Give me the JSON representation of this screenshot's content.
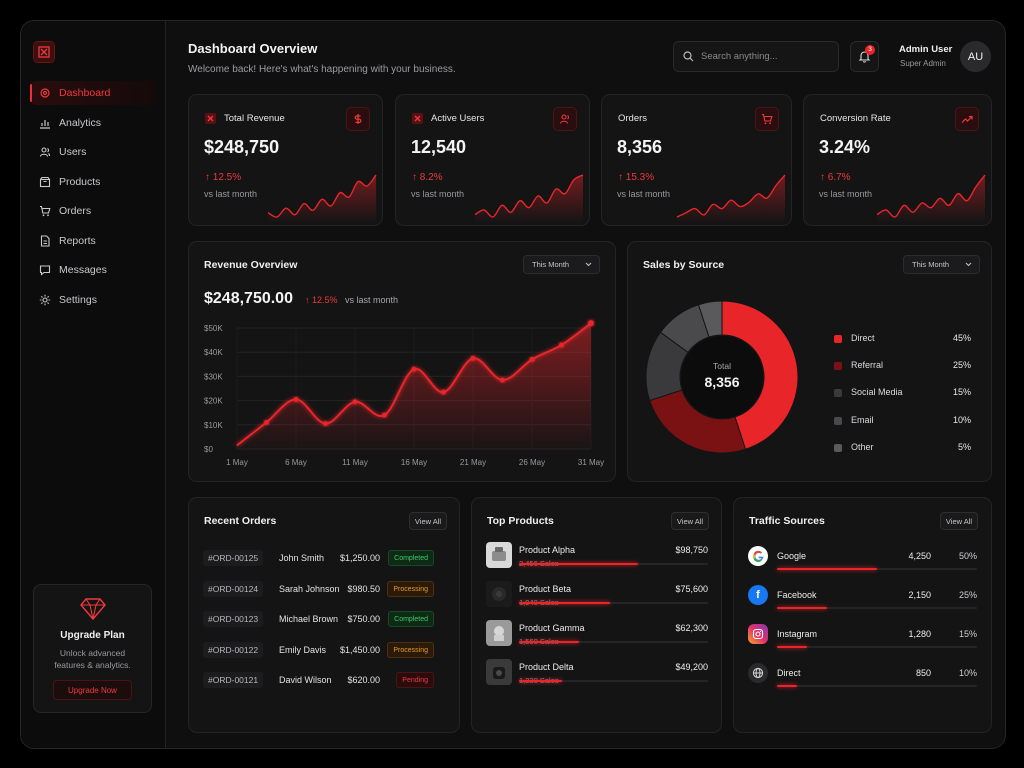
{
  "colors": {
    "accent": "#e8262a",
    "accent_dark": "#7a1214",
    "background": "#0f0f10",
    "card": "#141415",
    "gray": "#3a3a3c"
  },
  "sidebar": {
    "logo_icon": "logo-icon",
    "items": [
      {
        "label": "Dashboard",
        "icon": "gear-icon",
        "active": true
      },
      {
        "label": "Analytics",
        "icon": "bar-chart-icon"
      },
      {
        "label": "Users",
        "icon": "users-icon"
      },
      {
        "label": "Products",
        "icon": "box-icon"
      },
      {
        "label": "Orders",
        "icon": "cart-icon"
      },
      {
        "label": "Reports",
        "icon": "document-icon"
      },
      {
        "label": "Messages",
        "icon": "message-icon"
      },
      {
        "label": "Settings",
        "icon": "settings-icon"
      }
    ],
    "upgrade": {
      "title": "Upgrade Plan",
      "subtitle_line1": "Unlock advanced",
      "subtitle_line2": "features & analytics.",
      "button": "Upgrade Now"
    }
  },
  "header": {
    "title": "Dashboard Overview",
    "subtitle": "Welcome back! Here's what's happening with your business.",
    "search_placeholder": "Search anything...",
    "notification_count": "3",
    "user_name": "Admin User",
    "user_role": "Super Admin",
    "avatar_initials": "AU"
  },
  "stats": [
    {
      "label": "Total Revenue",
      "value": "$248,750",
      "change": "12.5%",
      "vs": "vs last month",
      "icon": "dollar-icon",
      "spark": [
        10,
        8,
        12,
        9,
        14,
        11,
        16,
        13,
        19,
        17,
        24,
        22,
        27
      ]
    },
    {
      "label": "Active Users",
      "value": "12,540",
      "change": "8.2%",
      "vs": "vs last month",
      "icon": "users-icon",
      "spark": [
        9,
        11,
        8,
        13,
        10,
        15,
        12,
        17,
        14,
        20,
        18,
        24,
        26
      ]
    },
    {
      "label": "Orders",
      "value": "8,356",
      "change": "15.3%",
      "vs": "vs last month",
      "icon": "cart-icon",
      "spark": [
        8,
        10,
        12,
        9,
        14,
        12,
        16,
        13,
        15,
        19,
        17,
        23,
        28
      ]
    },
    {
      "label": "Conversion Rate",
      "value": "3.24%",
      "change": "6.7%",
      "vs": "vs last month",
      "icon": "trend-up-icon",
      "spark": [
        10,
        12,
        9,
        14,
        11,
        15,
        13,
        17,
        14,
        19,
        16,
        22,
        27
      ]
    }
  ],
  "revenue": {
    "title": "Revenue Overview",
    "period": "This Month",
    "value": "$248,750.00",
    "change": "12.5%",
    "vs": "vs last month"
  },
  "chart_data": [
    {
      "type": "area",
      "title": "Revenue Overview",
      "x": [
        "1 May",
        "3 May",
        "6 May",
        "9 May",
        "11 May",
        "14 May",
        "16 May",
        "19 May",
        "21 May",
        "24 May",
        "26 May",
        "29 May",
        "31 May"
      ],
      "values": [
        1500,
        11000,
        20500,
        10500,
        19500,
        14000,
        33000,
        23500,
        37500,
        28500,
        37000,
        43000,
        52000
      ],
      "xticks": [
        "1 May",
        "6 May",
        "11 May",
        "16 May",
        "21 May",
        "26 May",
        "31 May"
      ],
      "yticks": [
        "$0",
        "$10K",
        "$20K",
        "$30K",
        "$40K",
        "$50K"
      ],
      "ylim": [
        0,
        50000
      ],
      "grid": true
    },
    {
      "type": "pie",
      "title": "Sales by Source",
      "center_label": "Total",
      "center_value": "8,356",
      "categories": [
        "Direct",
        "Referral",
        "Social Media",
        "Email",
        "Other"
      ],
      "values": [
        45,
        25,
        15,
        10,
        5
      ],
      "labels": [
        "45%",
        "25%",
        "15%",
        "10%",
        "5%"
      ],
      "colors": [
        "#e8262a",
        "#7a1214",
        "#3a3a3c",
        "#4a4a4c",
        "#5a5a5c"
      ],
      "legend": "right"
    }
  ],
  "sales_source": {
    "title": "Sales by Source",
    "period": "This Month"
  },
  "orders": {
    "title": "Recent Orders",
    "view_all": "View All",
    "rows": [
      {
        "id": "#ORD-00125",
        "name": "John Smith",
        "amount": "$1,250.00",
        "status": "Completed",
        "kind": "completed"
      },
      {
        "id": "#ORD-00124",
        "name": "Sarah Johnson",
        "amount": "$980.50",
        "status": "Processing",
        "kind": "processing"
      },
      {
        "id": "#ORD-00123",
        "name": "Michael Brown",
        "amount": "$750.00",
        "status": "Completed",
        "kind": "completed"
      },
      {
        "id": "#ORD-00122",
        "name": "Emily Davis",
        "amount": "$1,450.00",
        "status": "Processing",
        "kind": "processing"
      },
      {
        "id": "#ORD-00121",
        "name": "David Wilson",
        "amount": "$620.00",
        "status": "Pending",
        "kind": "pending"
      }
    ]
  },
  "products": {
    "title": "Top Products",
    "view_all": "View All",
    "rows": [
      {
        "name": "Product Alpha",
        "sales": "2,456 Sales",
        "amount": "$98,750",
        "share": 0.63
      },
      {
        "name": "Product Beta",
        "sales": "1,940 Sales",
        "amount": "$75,600",
        "share": 0.48
      },
      {
        "name": "Product Gamma",
        "sales": "1,560 Sales",
        "amount": "$62,300",
        "share": 0.32
      },
      {
        "name": "Product Delta",
        "sales": "1,230 Sales",
        "amount": "$49,200",
        "share": 0.23
      }
    ]
  },
  "traffic": {
    "title": "Traffic Sources",
    "view_all": "View All",
    "rows": [
      {
        "name": "Google",
        "value": "4,250",
        "pct": "50%",
        "share": 0.5,
        "icon": "google-icon"
      },
      {
        "name": "Facebook",
        "value": "2,150",
        "pct": "25%",
        "share": 0.25,
        "icon": "facebook-icon"
      },
      {
        "name": "Instagram",
        "value": "1,280",
        "pct": "15%",
        "share": 0.15,
        "icon": "instagram-icon"
      },
      {
        "name": "Direct",
        "value": "850",
        "pct": "10%",
        "share": 0.1,
        "icon": "globe-icon"
      }
    ]
  }
}
